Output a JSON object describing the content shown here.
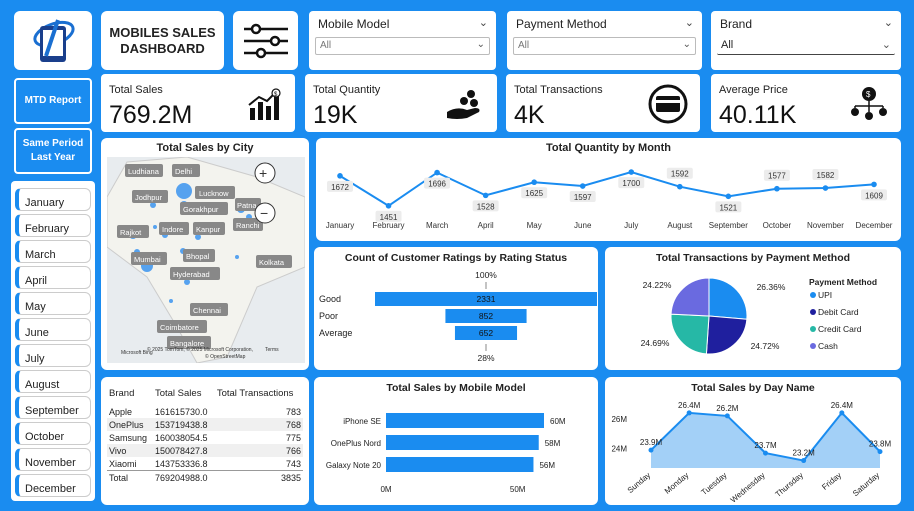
{
  "header": {
    "title_line1": "MOBILES SALES",
    "title_line2": "DASHBOARD"
  },
  "slicers": [
    {
      "label": "Mobile Model",
      "value": "All"
    },
    {
      "label": "Payment Method",
      "value": "All"
    },
    {
      "label": "Brand",
      "value": "All"
    }
  ],
  "left_buttons": {
    "mtd": "MTD Report",
    "spl_line1": "Same Period",
    "spl_line2": "Last Year"
  },
  "months": [
    "January",
    "February",
    "March",
    "April",
    "May",
    "June",
    "July",
    "August",
    "September",
    "October",
    "November",
    "December"
  ],
  "kpis": [
    {
      "label": "Total Sales",
      "value": "769.2M",
      "icon": "sales-chart-icon"
    },
    {
      "label": "Total Quantity",
      "value": "19K",
      "icon": "hand-coins-icon"
    },
    {
      "label": "Total Transactions",
      "value": "4K",
      "icon": "card-payment-icon"
    },
    {
      "label": "Average Price",
      "value": "40.11K",
      "icon": "price-network-icon"
    }
  ],
  "map": {
    "title": "Total Sales by City",
    "cities": [
      "Ludhiana",
      "Delhi",
      "Lucknow",
      "Jodhpur",
      "Gorakhpur",
      "Patna",
      "Rajkot",
      "Indore",
      "Kanpur",
      "Ranchi",
      "Mumbai",
      "Bhopal",
      "Kolkata",
      "Hyderabad",
      "Chennai",
      "Coimbatore",
      "Bangalore"
    ],
    "attribution": "© 2025 TomTom, © 2025 Microsoft Corporation,",
    "terms": "Terms",
    "osm": "© OpenStreetMap",
    "bing": "Microsoft Bing"
  },
  "colors": {
    "accent": "#1a8cf0",
    "bar": "#1a8cf0",
    "upi": "#1a8cf0",
    "debit": "#1f1f9e",
    "credit": "#26b8a6",
    "cash": "#6a6ae0"
  },
  "chart_data": [
    {
      "type": "line",
      "title": "Total Quantity by Month",
      "categories": [
        "January",
        "February",
        "March",
        "April",
        "May",
        "June",
        "July",
        "August",
        "September",
        "October",
        "November",
        "December"
      ],
      "values": [
        1672,
        1451,
        1696,
        1528,
        1625,
        1597,
        1700,
        1592,
        1521,
        1577,
        1582,
        1609
      ]
    },
    {
      "type": "bar",
      "title": "Count of Customer Ratings by Rating Status",
      "categories": [
        "Good",
        "Poor",
        "Average"
      ],
      "values": [
        2331,
        852,
        652
      ],
      "top_label": "100%",
      "bottom_label": "28%"
    },
    {
      "type": "pie",
      "title": "Total Transactions by Payment Method",
      "legend_title": "Payment Method",
      "categories": [
        "UPI",
        "Debit Card",
        "Credit Card",
        "Cash"
      ],
      "values": [
        26.36,
        24.72,
        24.69,
        24.22
      ],
      "labels": [
        "26.36%",
        "24.72%",
        "24.69%",
        "24.22%"
      ]
    },
    {
      "type": "table",
      "columns": [
        "Brand",
        "Total Sales",
        "Total Transactions"
      ],
      "rows": [
        [
          "Apple",
          "161615730.0",
          "783"
        ],
        [
          "OnePlus",
          "153719438.8",
          "768"
        ],
        [
          "Samsung",
          "160038054.5",
          "775"
        ],
        [
          "Vivo",
          "150078427.8",
          "766"
        ],
        [
          "Xiaomi",
          "143753336.8",
          "743"
        ]
      ],
      "total": [
        "Total",
        "769204988.0",
        "3835"
      ]
    },
    {
      "type": "bar",
      "title": "Total Sales by Mobile Model",
      "categories": [
        "iPhone SE",
        "OnePlus Nord",
        "Galaxy Note 20"
      ],
      "values": [
        60,
        58,
        56
      ],
      "value_labels": [
        "60M",
        "58M",
        "56M"
      ],
      "x_ticks": [
        "0M",
        "50M"
      ],
      "xlim": [
        0,
        60
      ]
    },
    {
      "type": "area",
      "title": "Total Sales by Day Name",
      "categories": [
        "Sunday",
        "Monday",
        "Tuesday",
        "Wednesday",
        "Thursday",
        "Friday",
        "Saturday"
      ],
      "values": [
        23.9,
        26.4,
        26.2,
        23.7,
        23.2,
        26.4,
        23.8
      ],
      "value_labels": [
        "23.9M",
        "26.4M",
        "26.2M",
        "23.7M",
        "23.2M",
        "26.4M",
        "23.8M"
      ],
      "y_ticks": [
        "26M",
        "24M"
      ],
      "ylim": [
        22.7,
        27
      ]
    }
  ]
}
